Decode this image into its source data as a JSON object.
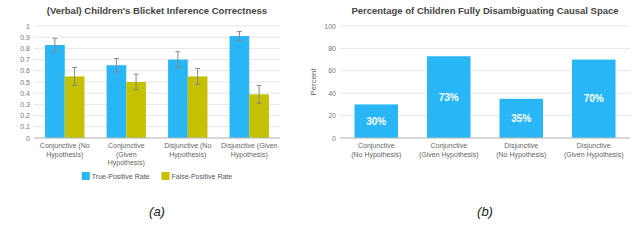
{
  "chart_data": [
    {
      "type": "bar",
      "title": "(Verbal) Children's Blicket Inference Correctness",
      "subtitle": "(a)",
      "categories": [
        "Conjunctive (No Hypothesis)",
        "Conjunctive (Given Hypothesis)",
        "Disjunctive (No Hypothesis)",
        "Disjunctive (Given Hypothesis)"
      ],
      "series": [
        {
          "name": "True-Positive Rate",
          "color": "#29B6F6",
          "values": [
            0.83,
            0.65,
            0.7,
            0.91
          ],
          "errors": [
            0.06,
            0.06,
            0.07,
            0.04
          ]
        },
        {
          "name": "False-Positive Rate",
          "color": "#C5C000",
          "values": [
            0.55,
            0.5,
            0.55,
            0.39
          ],
          "errors": [
            0.08,
            0.07,
            0.07,
            0.08
          ]
        }
      ],
      "ylim": [
        0,
        1.0
      ],
      "yticks": [
        0,
        0.1,
        0.2,
        0.3,
        0.4,
        0.5,
        0.6,
        0.7,
        0.8,
        0.9,
        1
      ],
      "grid": true,
      "legend": "bottom"
    },
    {
      "type": "bar",
      "title": "Percentage of Children Fully Disambiguating Causal Space",
      "subtitle": "(b)",
      "categories": [
        "Conjunctive\n(No Hypothesis)",
        "Conjunctive\n(Given Hypothesis)",
        "Disjunctive\n(No Hypothesis)",
        "Disjunctive\n(Given Hypothesis)"
      ],
      "values": [
        30,
        73,
        35,
        70
      ],
      "value_labels": [
        "30%",
        "73%",
        "35%",
        "70%"
      ],
      "color": "#29B6F6",
      "ylabel": "Percent",
      "ylim": [
        0,
        100
      ],
      "yticks": [
        0,
        20,
        40,
        60,
        80,
        100
      ],
      "grid": true,
      "data_labels": true
    }
  ]
}
